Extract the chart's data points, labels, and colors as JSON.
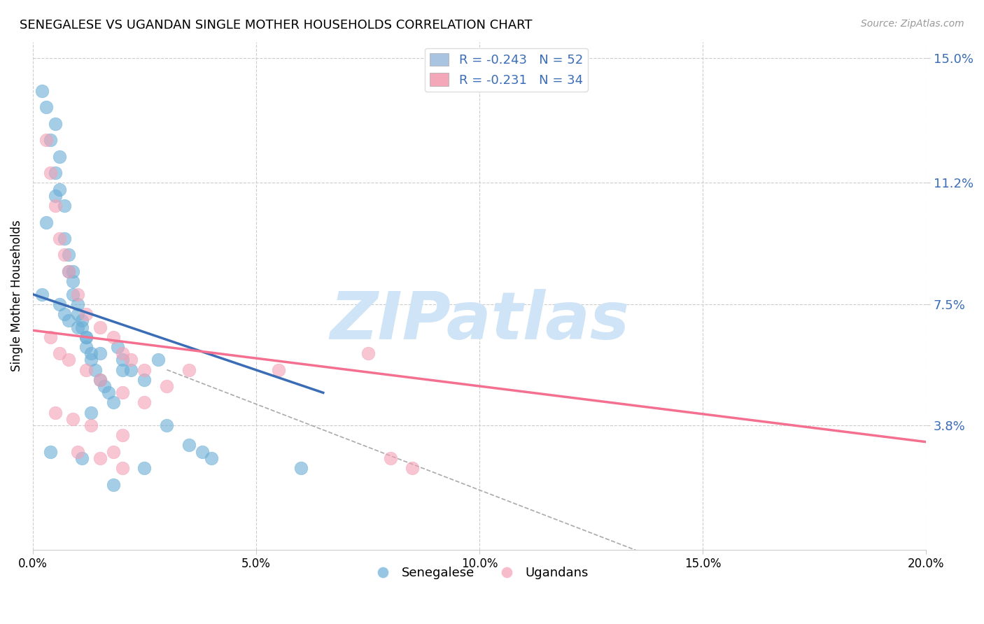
{
  "title": "SENEGALESE VS UGANDAN SINGLE MOTHER HOUSEHOLDS CORRELATION CHART",
  "source": "Source: ZipAtlas.com",
  "ylabel": "Single Mother Households",
  "xlim": [
    0.0,
    0.2
  ],
  "ylim": [
    0.0,
    0.155
  ],
  "xticks": [
    0.0,
    0.05,
    0.1,
    0.15,
    0.2
  ],
  "xtick_labels": [
    "0.0%",
    "5.0%",
    "10.0%",
    "15.0%",
    "20.0%"
  ],
  "yticks_right": [
    0.038,
    0.075,
    0.112,
    0.15
  ],
  "ytick_right_labels": [
    "3.8%",
    "7.5%",
    "11.2%",
    "15.0%"
  ],
  "legend_r_labels": [
    "R = -0.243   N = 52",
    "R = -0.231   N = 34"
  ],
  "legend_r_colors": [
    "#a8c4e0",
    "#f4a7b9"
  ],
  "legend_bottom": [
    "Senegalese",
    "Ugandans"
  ],
  "blue_color": "#6aaed6",
  "pink_color": "#f4a0b5",
  "blue_line_color": "#3a6db5",
  "pink_line_color": "#f47090",
  "dash_line_color": "#aaaaaa",
  "watermark": "ZIPatlas",
  "watermark_color": "#d0e4f7",
  "blue_scatter_x": [
    0.002,
    0.003,
    0.004,
    0.005,
    0.005,
    0.006,
    0.006,
    0.007,
    0.007,
    0.008,
    0.008,
    0.009,
    0.009,
    0.01,
    0.01,
    0.011,
    0.011,
    0.012,
    0.012,
    0.013,
    0.013,
    0.014,
    0.015,
    0.016,
    0.017,
    0.018,
    0.019,
    0.02,
    0.022,
    0.025,
    0.028,
    0.03,
    0.035,
    0.038,
    0.003,
    0.005,
    0.006,
    0.008,
    0.01,
    0.012,
    0.015,
    0.02,
    0.025,
    0.002,
    0.004,
    0.007,
    0.009,
    0.011,
    0.013,
    0.018,
    0.04,
    0.06
  ],
  "blue_scatter_y": [
    0.14,
    0.135,
    0.125,
    0.13,
    0.115,
    0.12,
    0.11,
    0.105,
    0.095,
    0.09,
    0.085,
    0.082,
    0.078,
    0.075,
    0.072,
    0.07,
    0.068,
    0.065,
    0.062,
    0.06,
    0.058,
    0.055,
    0.052,
    0.05,
    0.048,
    0.045,
    0.062,
    0.055,
    0.055,
    0.052,
    0.058,
    0.038,
    0.032,
    0.03,
    0.1,
    0.108,
    0.075,
    0.07,
    0.068,
    0.065,
    0.06,
    0.058,
    0.025,
    0.078,
    0.03,
    0.072,
    0.085,
    0.028,
    0.042,
    0.02,
    0.028,
    0.025
  ],
  "pink_scatter_x": [
    0.003,
    0.004,
    0.005,
    0.006,
    0.007,
    0.008,
    0.01,
    0.012,
    0.015,
    0.018,
    0.02,
    0.022,
    0.025,
    0.03,
    0.004,
    0.006,
    0.008,
    0.012,
    0.015,
    0.02,
    0.025,
    0.005,
    0.009,
    0.013,
    0.018,
    0.035,
    0.01,
    0.015,
    0.02,
    0.055,
    0.075,
    0.08,
    0.085,
    0.02
  ],
  "pink_scatter_y": [
    0.125,
    0.115,
    0.105,
    0.095,
    0.09,
    0.085,
    0.078,
    0.072,
    0.068,
    0.065,
    0.06,
    0.058,
    0.055,
    0.05,
    0.065,
    0.06,
    0.058,
    0.055,
    0.052,
    0.048,
    0.045,
    0.042,
    0.04,
    0.038,
    0.03,
    0.055,
    0.03,
    0.028,
    0.025,
    0.055,
    0.06,
    0.028,
    0.025,
    0.035
  ],
  "blue_line_x": [
    0.0,
    0.065
  ],
  "blue_line_y": [
    0.078,
    0.048
  ],
  "pink_line_x": [
    0.0,
    0.2
  ],
  "pink_line_y": [
    0.067,
    0.033
  ],
  "dash_line_x": [
    0.03,
    0.135
  ],
  "dash_line_y": [
    0.055,
    0.0
  ]
}
